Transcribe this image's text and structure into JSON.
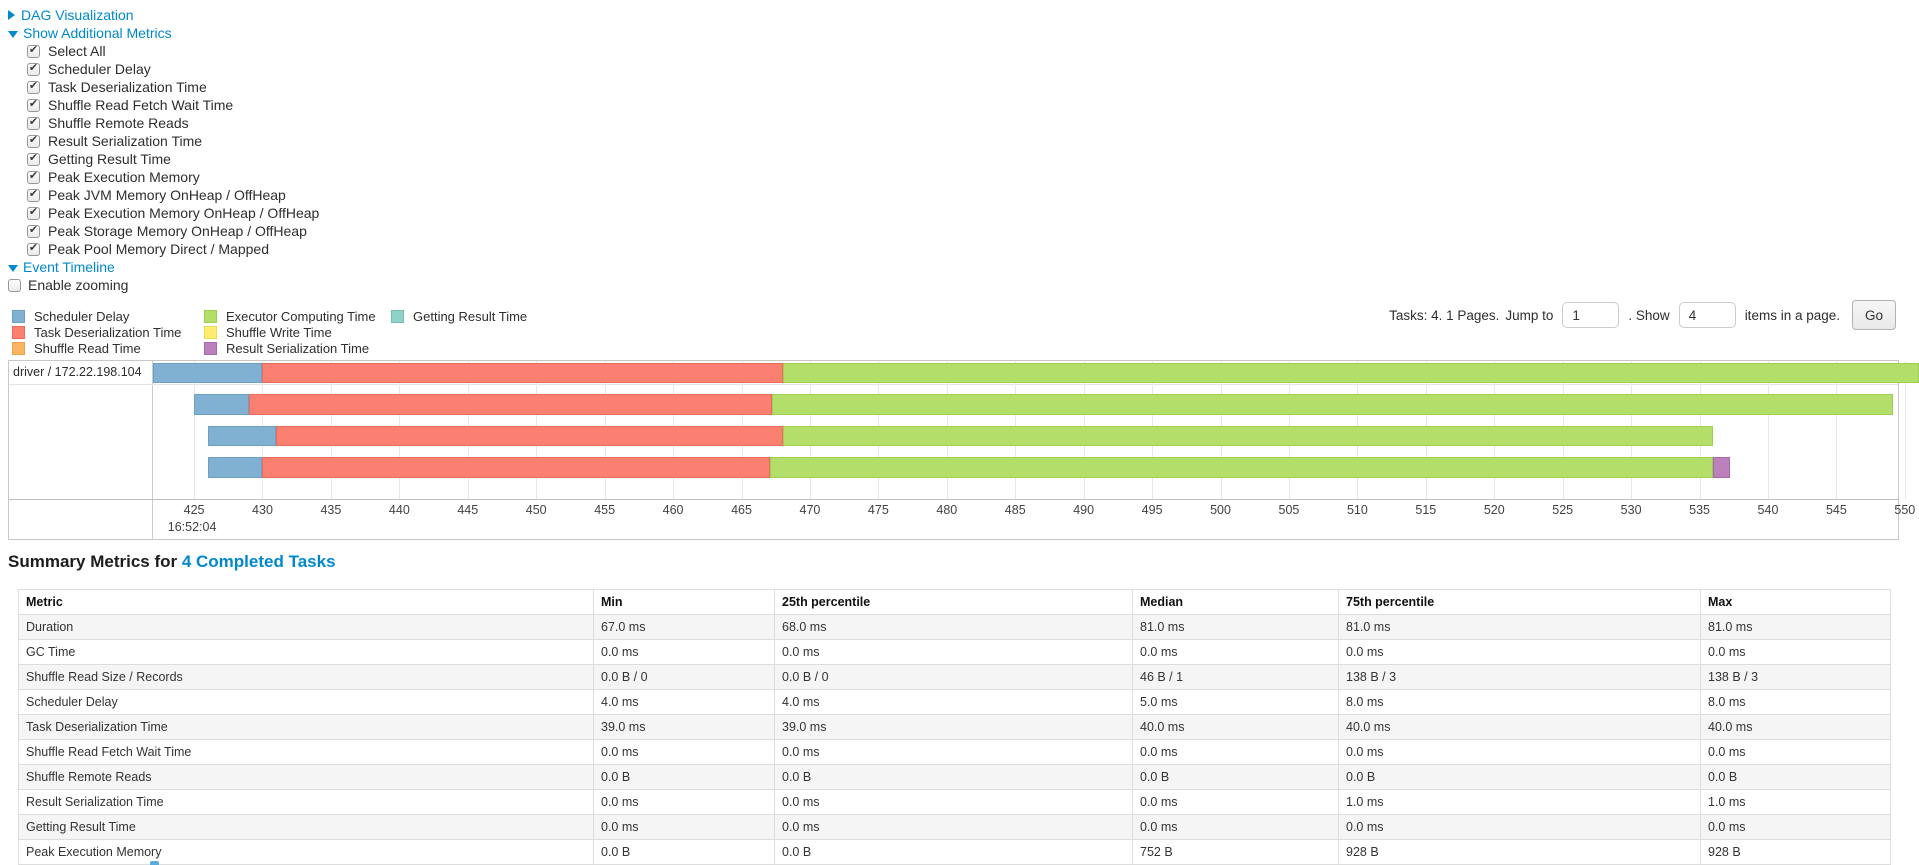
{
  "colors": {
    "link": "#0088cc",
    "scheduler_delay": {
      "fill": "#80B1D3",
      "border": "#6E9FC4"
    },
    "task_deserialization": {
      "fill": "#FB8072",
      "border": "#EA6A5C"
    },
    "shuffle_read": {
      "fill": "#FDB462",
      "border": "#ECA14C"
    },
    "executor_computing": {
      "fill": "#B3DE69",
      "border": "#A0CE52"
    },
    "shuffle_write": {
      "fill": "#FFED6F",
      "border": "#EDD957"
    },
    "result_serialization": {
      "fill": "#BC80BD",
      "border": "#A869AA"
    },
    "getting_result": {
      "fill": "#8DD3C7",
      "border": "#76BFB2"
    }
  },
  "controls": {
    "dag_toggle": "DAG Visualization",
    "metrics_toggle": "Show Additional Metrics",
    "metric_checkboxes": [
      {
        "label": "Select All",
        "checked": true
      },
      {
        "label": "Scheduler Delay",
        "checked": true
      },
      {
        "label": "Task Deserialization Time",
        "checked": true
      },
      {
        "label": "Shuffle Read Fetch Wait Time",
        "checked": true
      },
      {
        "label": "Shuffle Remote Reads",
        "checked": true
      },
      {
        "label": "Result Serialization Time",
        "checked": true
      },
      {
        "label": "Getting Result Time",
        "checked": true
      },
      {
        "label": "Peak Execution Memory",
        "checked": true
      },
      {
        "label": "Peak JVM Memory OnHeap / OffHeap",
        "checked": true
      },
      {
        "label": "Peak Execution Memory OnHeap / OffHeap",
        "checked": true
      },
      {
        "label": "Peak Storage Memory OnHeap / OffHeap",
        "checked": true
      },
      {
        "label": "Peak Pool Memory Direct / Mapped",
        "checked": true
      }
    ],
    "event_timeline_toggle": "Event Timeline",
    "enable_zooming": {
      "label": "Enable zooming",
      "checked": false
    }
  },
  "legend": {
    "columns": [
      [
        {
          "label": "Scheduler Delay",
          "color_key": "scheduler_delay"
        },
        {
          "label": "Task Deserialization Time",
          "color_key": "task_deserialization"
        },
        {
          "label": "Shuffle Read Time",
          "color_key": "shuffle_read"
        }
      ],
      [
        {
          "label": "Executor Computing Time",
          "color_key": "executor_computing"
        },
        {
          "label": "Shuffle Write Time",
          "color_key": "shuffle_write"
        },
        {
          "label": "Result Serialization Time",
          "color_key": "result_serialization"
        }
      ],
      [
        {
          "label": "Getting Result Time",
          "color_key": "getting_result"
        }
      ]
    ]
  },
  "pagination": {
    "summary": "Tasks: 4. 1 Pages.",
    "jump_label": "Jump to",
    "jump_value": "1",
    "show_label": ". Show",
    "page_size_value": "4",
    "items_label": "items in a page.",
    "go_label": "Go"
  },
  "chart_data": {
    "type": "timeline",
    "title": "Event Timeline",
    "group_label": "driver / 172.22.198.104",
    "x_axis": {
      "unit": "milliseconds within second 16:52:04",
      "min": 422,
      "max": 549.5,
      "tick_start": 425,
      "tick_end": 550,
      "tick_step": 5,
      "major_label": "16:52:04",
      "major_label_at": 425
    },
    "tasks": [
      {
        "segments": [
          {
            "metric": "scheduler_delay",
            "start": 422,
            "end": 430
          },
          {
            "metric": "task_deserialization",
            "start": 430,
            "end": 468
          },
          {
            "metric": "executor_computing",
            "start": 468,
            "end": 551
          }
        ]
      },
      {
        "segments": [
          {
            "metric": "scheduler_delay",
            "start": 425,
            "end": 429
          },
          {
            "metric": "task_deserialization",
            "start": 429,
            "end": 467.2
          },
          {
            "metric": "executor_computing",
            "start": 467.2,
            "end": 549.1
          }
        ]
      },
      {
        "segments": [
          {
            "metric": "scheduler_delay",
            "start": 426,
            "end": 431
          },
          {
            "metric": "task_deserialization",
            "start": 431,
            "end": 468
          },
          {
            "metric": "executor_computing",
            "start": 468,
            "end": 536
          }
        ]
      },
      {
        "segments": [
          {
            "metric": "scheduler_delay",
            "start": 426,
            "end": 430
          },
          {
            "metric": "task_deserialization",
            "start": 430,
            "end": 467.1
          },
          {
            "metric": "executor_computing",
            "start": 467.1,
            "end": 536
          },
          {
            "metric": "result_serialization",
            "start": 536,
            "end": 537.2
          }
        ]
      }
    ]
  },
  "summary": {
    "heading_prefix": "Summary Metrics for ",
    "heading_link": "4 Completed Tasks",
    "table": {
      "columns": [
        "Metric",
        "Min",
        "25th percentile",
        "Median",
        "75th percentile",
        "Max"
      ],
      "rows": [
        [
          "Duration",
          "67.0 ms",
          "68.0 ms",
          "81.0 ms",
          "81.0 ms",
          "81.0 ms"
        ],
        [
          "GC Time",
          "0.0 ms",
          "0.0 ms",
          "0.0 ms",
          "0.0 ms",
          "0.0 ms"
        ],
        [
          "Shuffle Read Size / Records",
          "0.0 B / 0",
          "0.0 B / 0",
          "46 B / 1",
          "138 B / 3",
          "138 B / 3"
        ],
        [
          "Scheduler Delay",
          "4.0 ms",
          "4.0 ms",
          "5.0 ms",
          "8.0 ms",
          "8.0 ms"
        ],
        [
          "Task Deserialization Time",
          "39.0 ms",
          "39.0 ms",
          "40.0 ms",
          "40.0 ms",
          "40.0 ms"
        ],
        [
          "Shuffle Read Fetch Wait Time",
          "0.0 ms",
          "0.0 ms",
          "0.0 ms",
          "0.0 ms",
          "0.0 ms"
        ],
        [
          "Shuffle Remote Reads",
          "0.0 B",
          "0.0 B",
          "0.0 B",
          "0.0 B",
          "0.0 B"
        ],
        [
          "Result Serialization Time",
          "0.0 ms",
          "0.0 ms",
          "0.0 ms",
          "1.0 ms",
          "1.0 ms"
        ],
        [
          "Getting Result Time",
          "0.0 ms",
          "0.0 ms",
          "0.0 ms",
          "0.0 ms",
          "0.0 ms"
        ],
        [
          "Peak Execution Memory",
          "0.0 B",
          "0.0 B",
          "752 B",
          "928 B",
          "928 B"
        ]
      ]
    }
  }
}
